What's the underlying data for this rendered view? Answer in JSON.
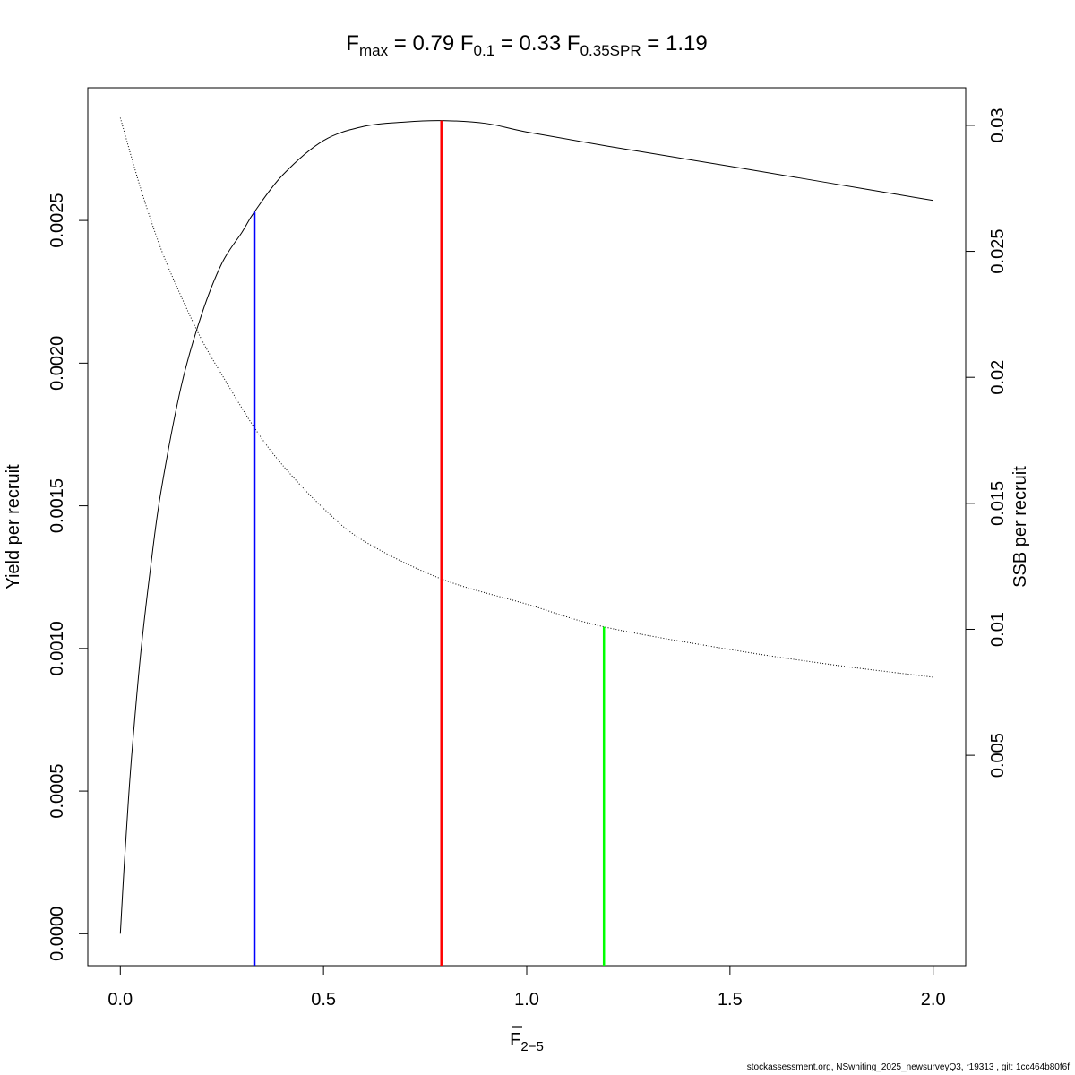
{
  "chart_data": {
    "type": "line",
    "title": {
      "fmax": {
        "label": "F",
        "sub": "max",
        "value": "0.79"
      },
      "f01": {
        "label": "F",
        "sub": "0.1",
        "value": "0.33"
      },
      "fspr": {
        "label": "F",
        "sub": "0.35SPR",
        "value": "1.19"
      }
    },
    "xlabel": {
      "base": "F",
      "sub": "2−5"
    },
    "ylabel_left": "Yield per recruit",
    "ylabel_right": "SSB per recruit",
    "xlim": [
      -0.08,
      2.08
    ],
    "ylim_left": [
      -0.000112,
      0.002965
    ],
    "ylim_right": [
      -0.00335,
      0.03149
    ],
    "x_ticks": [
      "0.0",
      "0.5",
      "1.0",
      "1.5",
      "2.0"
    ],
    "y_left_ticks": [
      "0.0000",
      "0.0005",
      "0.0010",
      "0.0015",
      "0.0020",
      "0.0025"
    ],
    "y_right_ticks": [
      "0.005",
      "0.01",
      "0.015",
      "0.02",
      "0.025",
      "0.03"
    ],
    "series": [
      {
        "axis": "left",
        "style": "solid",
        "x": [
          0,
          0.01,
          0.02,
          0.03,
          0.05,
          0.075,
          0.1,
          0.15,
          0.2,
          0.25,
          0.3,
          0.33,
          0.4,
          0.5,
          0.6,
          0.7,
          0.79,
          0.9,
          1.0,
          1.2,
          1.5,
          1.75,
          2.0
        ],
        "y": [
          0,
          0.00025,
          0.00047,
          0.00066,
          0.00098,
          0.00129,
          0.00155,
          0.00192,
          0.00217,
          0.00235,
          0.00246,
          0.00253,
          0.00266,
          0.00278,
          0.00283,
          0.002845,
          0.00285,
          0.00284,
          0.00281,
          0.00276,
          0.00269,
          0.00263,
          0.00257
        ]
      },
      {
        "axis": "right",
        "style": "dotted",
        "x": [
          0,
          0.05,
          0.1,
          0.15,
          0.2,
          0.25,
          0.33,
          0.4,
          0.5,
          0.6,
          0.79,
          1.0,
          1.19,
          1.5,
          1.75,
          2.0
        ],
        "y": [
          0.0303,
          0.0275,
          0.0251,
          0.0232,
          0.0215,
          0.0201,
          0.018,
          0.0165,
          0.0148,
          0.0135,
          0.012,
          0.011,
          0.0101,
          0.0092,
          0.0086,
          0.0081
        ]
      }
    ],
    "reference_lines": [
      {
        "name": "F0.1",
        "x": 0.33,
        "y_top": 0.00253,
        "axis": "left",
        "color": "#0000ff"
      },
      {
        "name": "Fmax",
        "x": 0.79,
        "y_top": 0.00285,
        "axis": "left",
        "color": "#ff0000"
      },
      {
        "name": "F0.35SPR",
        "x": 1.19,
        "y_top": 0.0101,
        "axis": "right",
        "color": "#00ff00"
      }
    ]
  },
  "footer": "stockassessment.org, NSwhiting_2025_newsurveyQ3, r19313 , git: 1cc464b80f6f"
}
